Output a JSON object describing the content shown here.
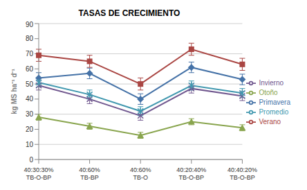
{
  "chart_data": {
    "type": "line",
    "title": "TASAS DE CRECIMIENTO",
    "y_label": "kg MS ha⁻¹ d⁻¹",
    "categories": [
      "40:30:30% TB-O-BP",
      "40:60% TB-BP",
      "40:60% TB-O",
      "40:20:40% TB-O-BP",
      "40:40:20% TB-O-BP"
    ],
    "series": [
      {
        "name": "Primavera",
        "color": "#4572A7",
        "marker": "diamond",
        "values": [
          54,
          57,
          40,
          61,
          53
        ],
        "errors": [
          3.5,
          3.5,
          3.5,
          3.5,
          3.5
        ]
      },
      {
        "name": "Verano",
        "color": "#AA4643",
        "marker": "square",
        "values": [
          69,
          65,
          50,
          73,
          63
        ],
        "errors": [
          4,
          4,
          4,
          4,
          4
        ]
      },
      {
        "name": "Otoño",
        "color": "#89A54E",
        "marker": "triangle",
        "values": [
          28,
          22,
          16,
          25,
          21
        ],
        "errors": [
          2,
          2,
          2,
          2,
          2
        ]
      },
      {
        "name": "Invierno",
        "color": "#71588F",
        "marker": "x",
        "values": [
          49,
          40,
          29,
          47,
          42
        ],
        "errors": [
          3,
          3,
          3,
          3,
          3
        ]
      },
      {
        "name": "Promedio",
        "color": "#4198AF",
        "marker": "star",
        "values": [
          51,
          43,
          32,
          49,
          44
        ],
        "errors": [
          3,
          3,
          3,
          3,
          3
        ]
      }
    ],
    "ylim": [
      0,
      90
    ],
    "yticks": [
      0,
      10,
      20,
      30,
      40,
      50,
      60,
      70,
      80,
      90
    ],
    "grid": true,
    "legend": "right"
  }
}
